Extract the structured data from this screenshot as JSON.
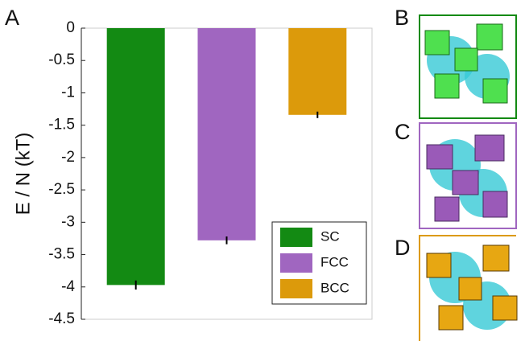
{
  "chart_data": {
    "type": "bar",
    "ylabel": "E / N (kT)",
    "categories": [
      "SC",
      "FCC",
      "BCC"
    ],
    "values": [
      -3.97,
      -3.28,
      -1.34
    ],
    "errors": [
      0.07,
      0.06,
      0.05
    ],
    "colors": [
      "#138a13",
      "#a066c0",
      "#dc9a0b"
    ],
    "ylim": [
      -4.5,
      0
    ],
    "yticks": [
      0,
      -0.5,
      -1,
      -1.5,
      -2,
      -2.5,
      -3,
      -3.5,
      -4,
      -4.5
    ],
    "legend": "lower-right"
  },
  "panel_labels": [
    "A",
    "B",
    "C",
    "D"
  ]
}
